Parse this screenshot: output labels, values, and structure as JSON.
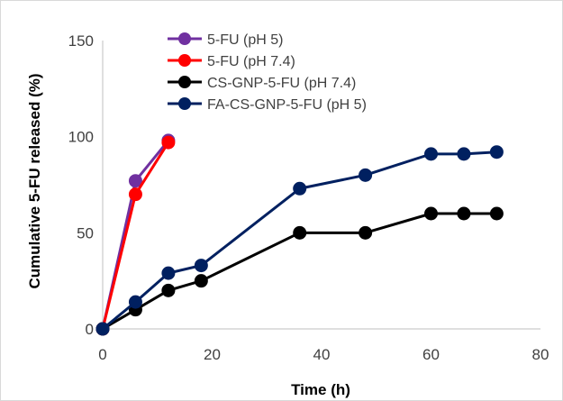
{
  "chart_data": {
    "type": "line",
    "title": "",
    "xlabel": "Time (h)",
    "ylabel": "Cumulative 5-FU released (%)",
    "xlim": [
      0,
      80
    ],
    "ylim": [
      0,
      150
    ],
    "xticks": [
      0,
      20,
      40,
      60,
      80
    ],
    "yticks": [
      0,
      50,
      100,
      150
    ],
    "grid": false,
    "legend_position": "top-left",
    "series": [
      {
        "name": "5-FU (pH 5)",
        "color": "#7030a0",
        "x": [
          0,
          6,
          12
        ],
        "y": [
          0,
          77,
          98
        ]
      },
      {
        "name": "5-FU (pH 7.4)",
        "color": "#ff0000",
        "x": [
          0,
          6,
          12
        ],
        "y": [
          0,
          70,
          97
        ]
      },
      {
        "name": "CS-GNP-5-FU (pH 7.4)",
        "color": "#000000",
        "x": [
          0,
          6,
          12,
          18,
          36,
          48,
          60,
          66,
          72
        ],
        "y": [
          0,
          10,
          20,
          25,
          50,
          50,
          60,
          60,
          60
        ]
      },
      {
        "name": "FA-CS-GNP-5-FU (pH 5)",
        "color": "#002060",
        "x": [
          0,
          6,
          12,
          18,
          36,
          48,
          60,
          66,
          72
        ],
        "y": [
          0,
          14,
          29,
          33,
          73,
          80,
          91,
          91,
          92
        ]
      }
    ]
  }
}
